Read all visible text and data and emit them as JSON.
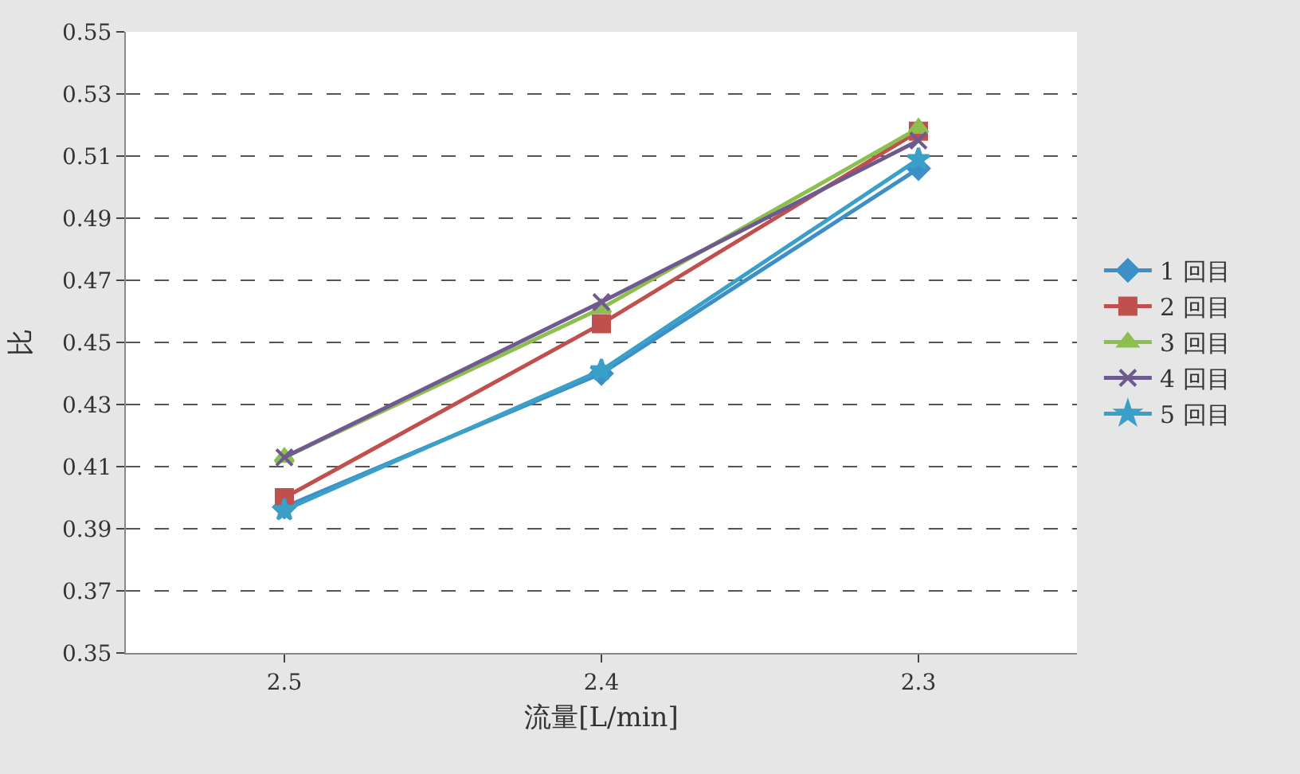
{
  "chart_data": {
    "type": "line",
    "xlabel": "流量[L/min]",
    "ylabel": "比",
    "categories": [
      "2.5",
      "2.4",
      "2.3"
    ],
    "ylim": [
      0.35,
      0.55
    ],
    "yticks": [
      0.35,
      0.37,
      0.39,
      0.41,
      0.43,
      0.45,
      0.47,
      0.49,
      0.51,
      0.53,
      0.55
    ],
    "grid": "y",
    "legend": "right",
    "series": [
      {
        "name": "1 回目",
        "color": "#3d8fc8",
        "marker": "diamond",
        "values": [
          0.397,
          0.44,
          0.506
        ]
      },
      {
        "name": "2 回目",
        "color": "#c0504d",
        "marker": "square",
        "values": [
          0.4,
          0.456,
          0.518
        ]
      },
      {
        "name": "3 回目",
        "color": "#8cbf4f",
        "marker": "triangle",
        "values": [
          0.413,
          0.461,
          0.519
        ]
      },
      {
        "name": "4 回目",
        "color": "#6f5a8f",
        "marker": "cross",
        "values": [
          0.413,
          0.463,
          0.515
        ]
      },
      {
        "name": "5 回目",
        "color": "#3aa0c8",
        "marker": "star",
        "values": [
          0.396,
          0.441,
          0.509
        ]
      }
    ]
  }
}
